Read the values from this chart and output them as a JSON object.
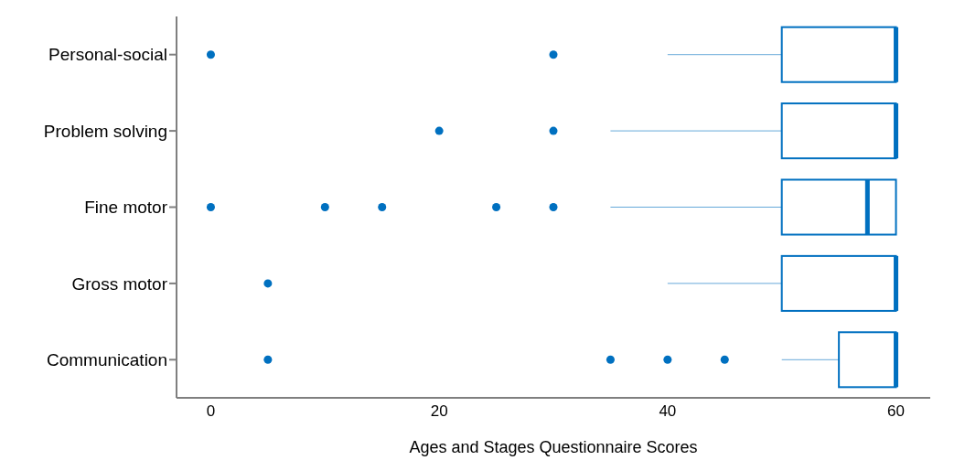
{
  "chart_data": {
    "type": "box",
    "orientation": "horizontal",
    "xlabel": "Ages and Stages Questionnaire Scores",
    "categories": [
      "Personal-social",
      "Problem solving",
      "Fine motor",
      "Gross motor",
      "Communication"
    ],
    "color": "#0070c0",
    "marker": "circle",
    "grid": false,
    "legend": false,
    "xlim": [
      -3,
      63
    ],
    "xticks": [
      0,
      20,
      40,
      60
    ],
    "boxes": [
      {
        "low": 40,
        "q1": 50,
        "median": 60,
        "q3": 60,
        "high": 60,
        "outliers": [
          0,
          30
        ]
      },
      {
        "low": 35,
        "q1": 50,
        "median": 60,
        "q3": 60,
        "high": 60,
        "outliers": [
          20,
          30
        ]
      },
      {
        "low": 35,
        "q1": 50,
        "median": 57.5,
        "q3": 60,
        "high": 60,
        "outliers": [
          0,
          10,
          15,
          25,
          30
        ]
      },
      {
        "low": 40,
        "q1": 50,
        "median": 60,
        "q3": 60,
        "high": 60,
        "outliers": [
          5
        ]
      },
      {
        "low": 50,
        "q1": 55,
        "median": 60,
        "q3": 60,
        "high": 60,
        "outliers": [
          5,
          35,
          40,
          45
        ]
      }
    ]
  }
}
